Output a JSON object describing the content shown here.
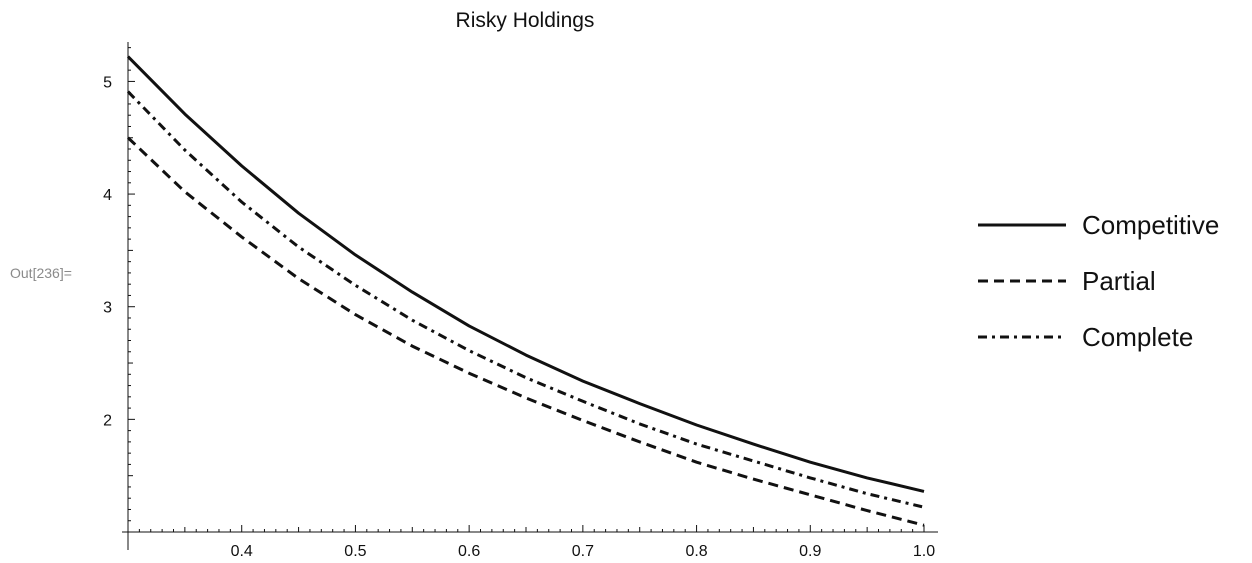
{
  "cell_label": "Out[236]=",
  "chart_data": {
    "type": "line",
    "title": "Risky Holdings",
    "xlabel": "",
    "ylabel": "",
    "xlim": [
      0.3,
      1.0
    ],
    "ylim": [
      1.0,
      5.35
    ],
    "x_ticks": [
      0.4,
      0.5,
      0.6,
      0.7,
      0.8,
      0.9,
      1.0
    ],
    "x_tick_labels": [
      "0.4",
      "0.5",
      "0.6",
      "0.7",
      "0.8",
      "0.9",
      "1.0"
    ],
    "y_ticks": [
      2,
      3,
      4,
      5
    ],
    "y_tick_labels": [
      "2",
      "3",
      "4",
      "5"
    ],
    "grid": false,
    "legend_position": "right",
    "x": [
      0.3,
      0.35,
      0.4,
      0.45,
      0.5,
      0.55,
      0.6,
      0.65,
      0.7,
      0.75,
      0.8,
      0.85,
      0.9,
      0.95,
      1.0
    ],
    "series": [
      {
        "name": "Competitive",
        "dash": "solid",
        "values": [
          5.22,
          4.71,
          4.25,
          3.83,
          3.46,
          3.13,
          2.83,
          2.57,
          2.34,
          2.14,
          1.95,
          1.78,
          1.62,
          1.48,
          1.36
        ]
      },
      {
        "name": "Partial",
        "dash": "dashed",
        "values": [
          4.5,
          4.02,
          3.62,
          3.25,
          2.93,
          2.65,
          2.41,
          2.19,
          1.99,
          1.8,
          1.62,
          1.47,
          1.33,
          1.19,
          1.06
        ]
      },
      {
        "name": "Complete",
        "dash": "dashdot",
        "values": [
          4.91,
          4.39,
          3.93,
          3.53,
          3.19,
          2.88,
          2.61,
          2.37,
          2.16,
          1.96,
          1.78,
          1.63,
          1.48,
          1.34,
          1.22
        ]
      }
    ],
    "line_color": "#111111"
  }
}
